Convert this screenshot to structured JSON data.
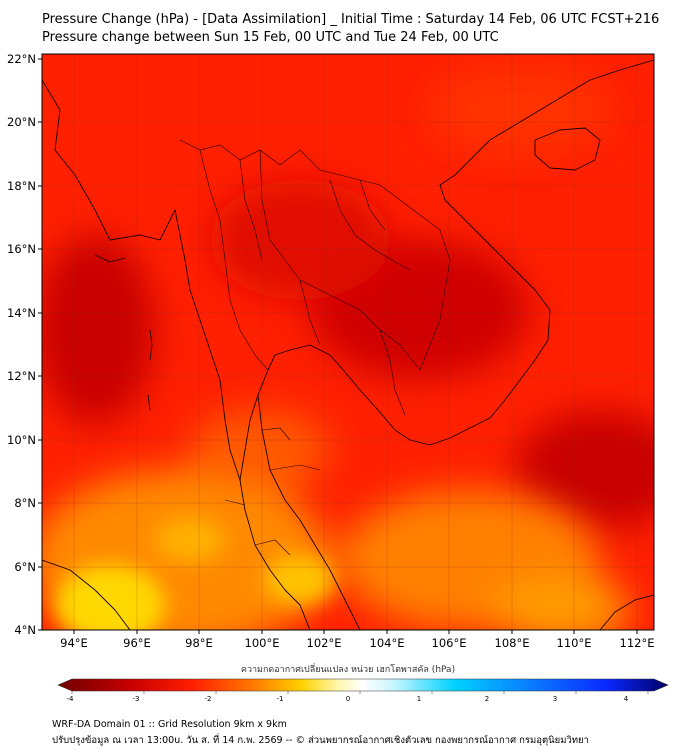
{
  "title": {
    "line1": "Pressure Change (hPa) - [Data Assimilation] _ Initial Time : Saturday 14 Feb, 06 UTC FCST+216",
    "line2": "Pressure change between Sun 15 Feb, 00 UTC and Tue 24 Feb, 00 UTC"
  },
  "map": {
    "lat_ticks": [
      "22°N",
      "20°N",
      "18°N",
      "16°N",
      "14°N",
      "12°N",
      "10°N",
      "8°N",
      "6°N",
      "4°N"
    ],
    "lon_ticks": [
      "94°E",
      "96°E",
      "98°E",
      "100°E",
      "102°E",
      "104°E",
      "106°E",
      "108°E",
      "110°E",
      "112°E"
    ]
  },
  "colorbar": {
    "title": "ความกดอากาศเปลี่ยนแปลง หน่วย เฮกโตพาสคัล (hPa)",
    "labels": [
      "-4",
      "-3",
      "-2",
      "-1",
      "0",
      "1",
      "2",
      "3",
      "4"
    ],
    "colors": {
      "dark_red": "#7a0000",
      "red": "#ff1a00",
      "orange": "#ff8c00",
      "yellow": "#ffe600",
      "white": "#ffffff",
      "cyan": "#00d2ff",
      "blue": "#0a3cff",
      "navy": "#000050"
    }
  },
  "footer": {
    "line1": "WRF-DA Domain 01 :: Grid Resolution 9km x 9km",
    "line2": "ปรับปรุงข้อมูล ณ เวลา 13:00u. วัน ส. ที่ 14 ก.พ. 2569 -- © ส่วนพยากรณ์อากาศเชิงตัวเลข กองพยากรณ์อากาศ กรมอุตุนิยมวิทยา"
  }
}
